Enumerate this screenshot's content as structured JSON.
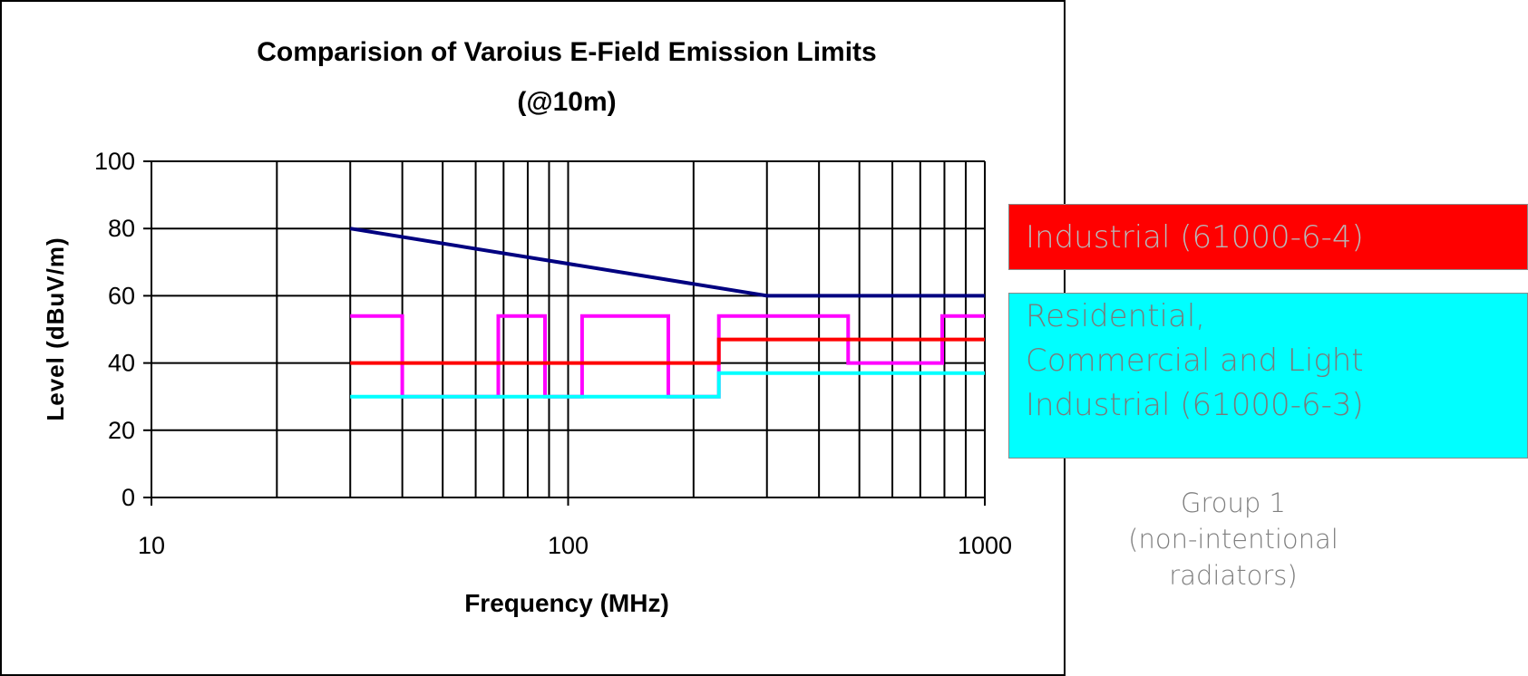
{
  "chart_data": {
    "type": "line",
    "title": "Comparision of Varoius E-Field Emission Limits",
    "subtitle": "(@10m)",
    "xlabel": "Frequency (MHz)",
    "ylabel": "Level (dBuV/m)",
    "x_scale": "log",
    "xlim": [
      10,
      1000
    ],
    "ylim": [
      0,
      100
    ],
    "x_ticks": [
      10,
      100,
      1000
    ],
    "x_tick_labels": [
      "10",
      "100",
      "1000"
    ],
    "y_ticks": [
      0,
      20,
      40,
      60,
      80,
      100
    ],
    "y_tick_labels": [
      "0",
      "20",
      "40",
      "60",
      "80",
      "100"
    ],
    "grid": true,
    "series": [
      {
        "color": "#000080",
        "x": [
          30,
          300,
          1000
        ],
        "y": [
          80,
          60,
          60
        ]
      },
      {
        "color": "#ff00ff",
        "x": [
          30,
          40,
          40,
          68,
          68,
          88,
          88,
          108,
          108,
          174,
          174,
          230,
          230,
          470,
          470,
          790,
          790,
          1000
        ],
        "y": [
          54,
          54,
          30,
          30,
          54,
          54,
          30,
          30,
          54,
          54,
          30,
          30,
          54,
          54,
          40,
          40,
          54,
          54
        ]
      },
      {
        "color": "#ff0000",
        "x": [
          30,
          230,
          230,
          1000
        ],
        "y": [
          40,
          40,
          47,
          47
        ]
      },
      {
        "color": "#00ffff",
        "x": [
          30,
          230,
          230,
          1000
        ],
        "y": [
          30,
          30,
          37,
          37
        ]
      }
    ]
  },
  "annotations": {
    "industrial": "Industrial (61000-6-4)",
    "residential": "Residential,\nCommercial and Light\nIndustrial (61000-6-3)",
    "group": "Group 1\n(non-intentional\nradiators)"
  },
  "colors": {
    "industrial_box": "#ff0000",
    "residential_box": "#00ffff"
  }
}
